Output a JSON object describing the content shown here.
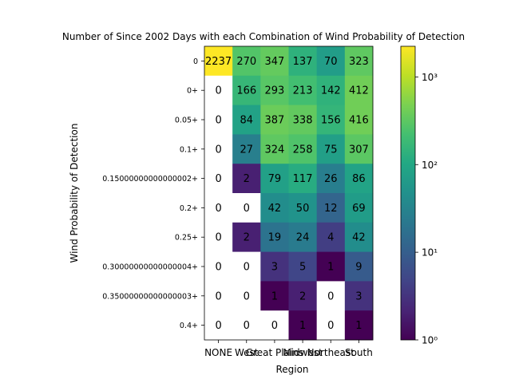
{
  "chart_data": {
    "type": "heatmap",
    "title": "Number of Since 2002 Days with each Combination of Wind Probability of Detection",
    "xlabel": "Region",
    "ylabel": "Wind Probability of Detection",
    "x_categories": [
      "NONE",
      "West",
      "Great Plains",
      "Midwest",
      "Northeast",
      "South"
    ],
    "y_categories": [
      "0",
      "0+",
      "0.05+",
      "0.1+",
      "0.15000000000000002+",
      "0.2+",
      "0.25+",
      "0.30000000000000004+",
      "0.35000000000000003+",
      "0.4+"
    ],
    "values": [
      [
        2237,
        270,
        347,
        137,
        70,
        323
      ],
      [
        0,
        166,
        293,
        213,
        142,
        412
      ],
      [
        0,
        84,
        387,
        338,
        156,
        416
      ],
      [
        0,
        27,
        324,
        258,
        75,
        307
      ],
      [
        0,
        2,
        79,
        117,
        26,
        86
      ],
      [
        0,
        0,
        42,
        50,
        12,
        69
      ],
      [
        0,
        2,
        19,
        24,
        4,
        42
      ],
      [
        0,
        0,
        3,
        5,
        1,
        9
      ],
      [
        0,
        0,
        1,
        2,
        0,
        3
      ],
      [
        0,
        0,
        0,
        1,
        0,
        1
      ]
    ],
    "colorbar": {
      "scale": "log",
      "colormap": "viridis",
      "range": [
        1,
        2237
      ],
      "ticks": [
        1,
        10,
        100,
        1000
      ],
      "tick_labels": [
        "10⁰",
        "10¹",
        "10²",
        "10³"
      ]
    },
    "zero_cell_color": "#ffffff",
    "grid": false
  }
}
